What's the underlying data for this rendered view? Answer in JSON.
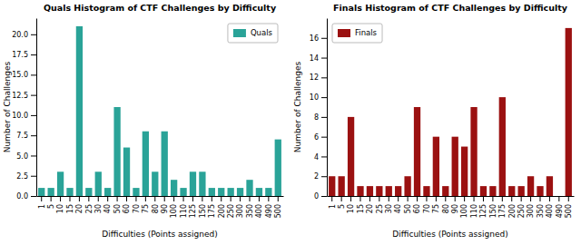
{
  "chart_data": [
    {
      "type": "bar",
      "title": "Quals Histogram of CTF Challenges by Difficulty",
      "xlabel": "Difficulties (Points assigned)",
      "ylabel": "Number of Challenges",
      "categories": [
        "1",
        "5",
        "10",
        "15",
        "20",
        "25",
        "30",
        "40",
        "50",
        "60",
        "70",
        "75",
        "80",
        "90",
        "100",
        "110",
        "125",
        "150",
        "175",
        "200",
        "250",
        "300",
        "350",
        "400",
        "490",
        "500"
      ],
      "series": [
        {
          "name": "Quals",
          "color": "#2aa398",
          "values": [
            1,
            1,
            3,
            1,
            21,
            1,
            3,
            1,
            11,
            6,
            1,
            8,
            3,
            8,
            2,
            1,
            3,
            3,
            1,
            1,
            1,
            1,
            2,
            1,
            1,
            7
          ]
        }
      ],
      "ylim": [
        0,
        22
      ],
      "yticks": [
        {
          "value": 0,
          "label": "0.0"
        },
        2.5,
        {
          "value": 5,
          "label": "5.0"
        },
        7.5,
        {
          "value": 10,
          "label": "10.0"
        },
        12.5,
        {
          "value": 15,
          "label": "15.0"
        },
        17.5,
        {
          "value": 20,
          "label": "20.0"
        }
      ],
      "grid": false,
      "legend": "upper right"
    },
    {
      "type": "bar",
      "title": "Finals Histogram of CTF Challenges by Difficulty",
      "xlabel": "Difficulties (Points assigned)",
      "ylabel": "Number of Challenges",
      "categories": [
        "1",
        "5",
        "10",
        "15",
        "20",
        "25",
        "30",
        "40",
        "50",
        "60",
        "70",
        "75",
        "80",
        "90",
        "100",
        "110",
        "125",
        "150",
        "175",
        "200",
        "250",
        "300",
        "350",
        "400",
        "490",
        "500"
      ],
      "series": [
        {
          "name": "Finals",
          "color": "#9b1111",
          "values": [
            2,
            2,
            8,
            1,
            1,
            1,
            1,
            1,
            2,
            9,
            1,
            6,
            1,
            6,
            5,
            9,
            1,
            1,
            10,
            1,
            1,
            2,
            1,
            2,
            0,
            17
          ]
        }
      ],
      "ylim": [
        0,
        18
      ],
      "yticks": [
        0,
        2,
        4,
        6,
        8,
        10,
        12,
        14,
        16
      ],
      "grid": false,
      "legend": "upper left"
    }
  ]
}
